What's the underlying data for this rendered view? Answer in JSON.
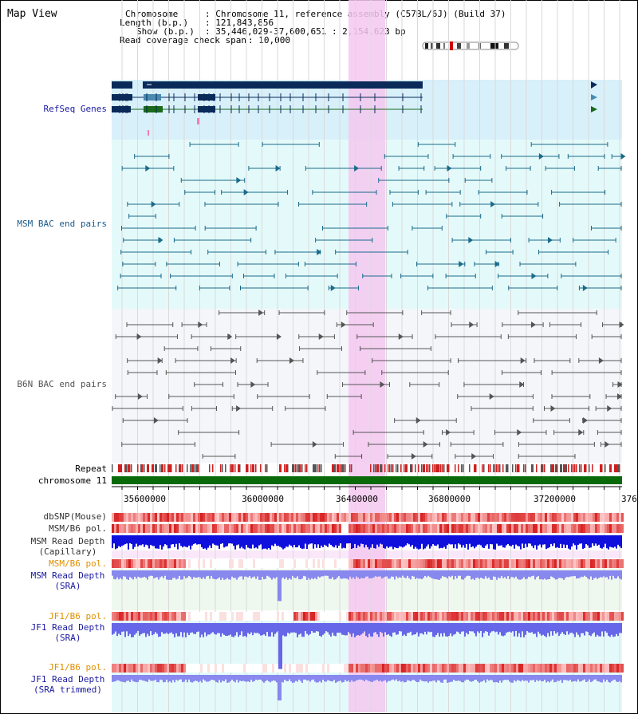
{
  "page_title": "Map View",
  "info": {
    "chromosome_key": "Chromosome",
    "chromosome_val": ": Chromosome 11, reference assembly (C57BL/6J) (Build 37)",
    "length_key": "Length (b.p.)",
    "length_val": ": 121,843,856",
    "show_key": "Show (b.p.)",
    "show_val": ": 35,446,029-37,600,651 : 2,154,623 bp",
    "span_key": "Read coverage check span",
    "span_val": ": 10,000"
  },
  "tracks": {
    "refseq": "RefSeq Genes",
    "msm_bac": "MSM BAC end pairs",
    "b6n_bac": "B6N BAC end pairs",
    "repeat": "Repeat",
    "chromosome": "chromosome 11",
    "dbsnp": "dbSNP(Mouse)",
    "msm_b6_pol": "MSM/B6 pol.",
    "msm_depth_cap_1": "MSM Read Depth",
    "msm_depth_cap_2": "(Capillary)",
    "msm_b6_pol_2": "MSM/B6 pol.",
    "msm_depth_sra_1": "MSM Read Depth",
    "msm_depth_sra_2": "(SRA)",
    "jf1_pol": "JF1/B6 pol.",
    "jf1_depth_1": "JF1 Read Depth",
    "jf1_depth_2": "(SRA)",
    "jf1_pol_2": "JF1/B6 pol.",
    "jf1_trim_1": "JF1 Read Depth",
    "jf1_trim_2": "(SRA trimmed)"
  },
  "axis": {
    "ticks": [
      "35600000",
      "36000000",
      "36400000",
      "36800000",
      "37200000",
      "376"
    ]
  },
  "colors": {
    "highlight": "#f5c8f0",
    "refseq_bg": "#d8f0fa",
    "msm_bg": "#e4fafa",
    "b6n_bg": "#f4f6fa",
    "gene_dark": "#0a2a5a",
    "gene_teal": "#4a8ab0",
    "gene_green": "#1a6a1a",
    "msm_pair": "#1a6a8a",
    "b6n_pair": "#555555",
    "chromosome": "#0a6a0a",
    "repeat": "#cc2020",
    "depth_blue": "#1010dd",
    "depth_light": "#8888ee",
    "label_navy": "#1a1aa0",
    "label_teal": "#1a5a8a",
    "label_orange": "#e09000"
  }
}
